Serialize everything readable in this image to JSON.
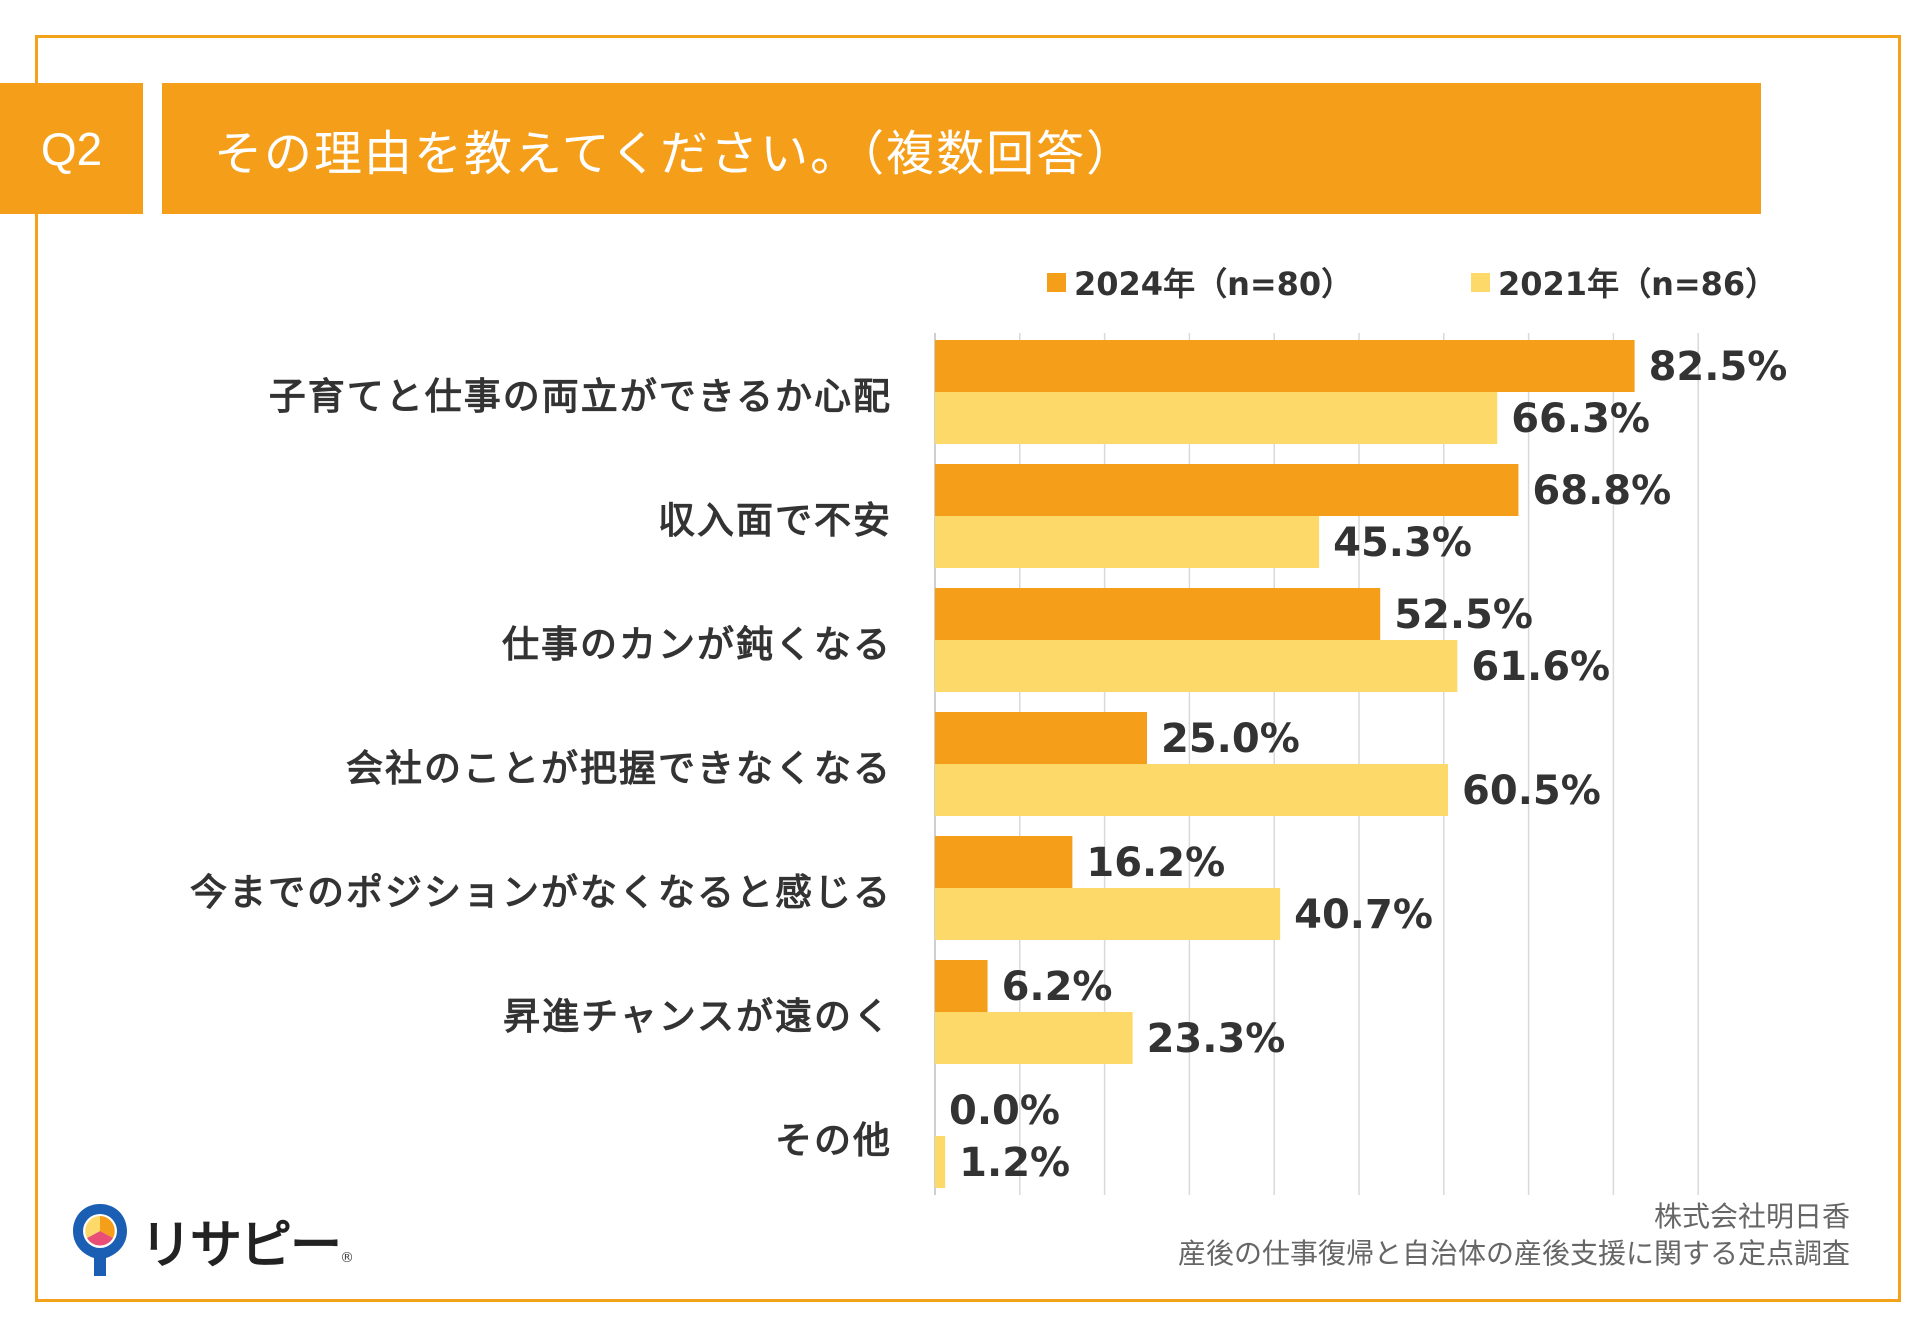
{
  "header": {
    "q_label": "Q2",
    "title": "その理由を教えてください。（複数回答）"
  },
  "colors": {
    "primary": "#f59e1a",
    "series_2024": "#f59e1a",
    "series_2021": "#fdd96a",
    "frame": "#f3a21a",
    "grid": "#d9d9d9"
  },
  "legend": {
    "s2024": "2024年（n=80）",
    "s2021": "2021年（n=86）"
  },
  "chart_data": {
    "type": "bar",
    "orientation": "horizontal",
    "title": "その理由を教えてください。（複数回答）",
    "categories": [
      "子育てと仕事の両立ができるか心配",
      "収入面で不安",
      "仕事のカンが鈍くなる",
      "会社のことが把握できなくなる",
      "今までのポジションがなくなると感じる",
      "昇進チャンスが遠のく",
      "その他"
    ],
    "series": [
      {
        "name": "2024年（n=80）",
        "values": [
          82.5,
          68.8,
          52.5,
          25.0,
          16.2,
          6.2,
          0.0
        ],
        "labels": [
          "82.5%",
          "68.8%",
          "52.5%",
          "25.0%",
          "16.2%",
          "6.2%",
          "0.0%"
        ]
      },
      {
        "name": "2021年（n=86）",
        "values": [
          66.3,
          45.3,
          61.6,
          60.5,
          40.7,
          23.3,
          1.2
        ],
        "labels": [
          "66.3%",
          "45.3%",
          "61.6%",
          "60.5%",
          "40.7%",
          "23.3%",
          "1.2%"
        ]
      }
    ],
    "xlim": [
      0,
      100
    ],
    "grid": true,
    "legend_position": "top-right"
  },
  "footer": {
    "company": "株式会社明日香",
    "survey": "産後の仕事復帰と自治体の産後支援に関する定点調査"
  },
  "logo": {
    "text": "リサピー",
    "mark": "®"
  }
}
